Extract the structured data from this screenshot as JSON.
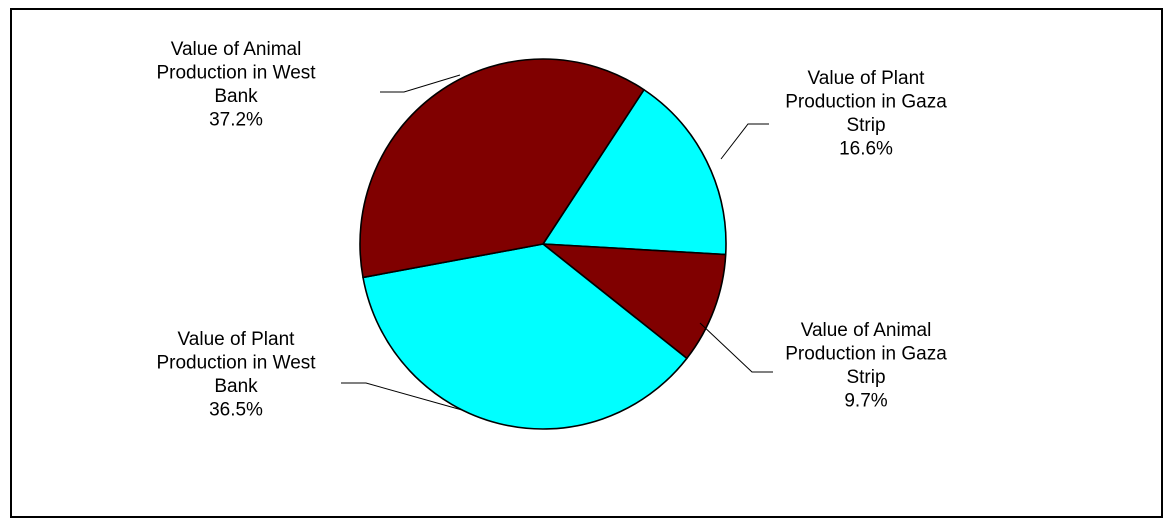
{
  "chart_data": {
    "type": "pie",
    "title": "",
    "series": [
      {
        "values": [
          16.6,
          9.7,
          36.5,
          37.2
        ],
        "colors": [
          "#00FFFF",
          "#800000",
          "#00FFFF",
          "#800000"
        ]
      }
    ],
    "slices": [
      {
        "label_lines": [
          "Value of Plant",
          "Production in Gaza",
          "Strip"
        ],
        "percent_label": "16.6%",
        "value": 16.6,
        "color": "#00FFFF"
      },
      {
        "label_lines": [
          "Value of Animal",
          "Production in Gaza",
          "Strip"
        ],
        "percent_label": "9.7%",
        "value": 9.7,
        "color": "#800000"
      },
      {
        "label_lines": [
          "Value of Plant",
          "Production in West",
          "Bank"
        ],
        "percent_label": "36.5%",
        "value": 36.5,
        "color": "#00FFFF"
      },
      {
        "label_lines": [
          "Value of Animal",
          "Production in West",
          "Bank"
        ],
        "percent_label": "37.2%",
        "value": 37.2,
        "color": "#800000"
      }
    ],
    "legend": "none"
  }
}
